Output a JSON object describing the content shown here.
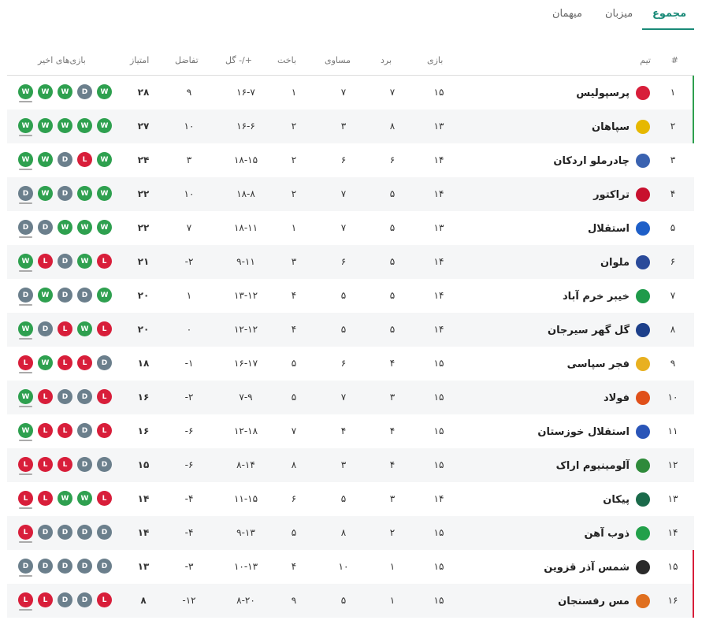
{
  "tabs": [
    {
      "label": "مجموع",
      "active": true
    },
    {
      "label": "میزبان",
      "active": false
    },
    {
      "label": "میهمان",
      "active": false
    }
  ],
  "headers": {
    "pos": "#",
    "team": "تیم",
    "played": "بازی",
    "won": "برد",
    "drawn": "مساوی",
    "lost": "باخت",
    "goals": "گل -/+",
    "diff": "تفاضل",
    "points": "امتیاز",
    "form": "بازی‌های اخیر"
  },
  "colors": {
    "accent": "#1a8a78",
    "win": "#2ea04f",
    "draw": "#6b7f8c",
    "loss": "#d81e3a",
    "top_zone": "#2ea04f",
    "bottom_zone": "#d81e3a"
  },
  "rows": [
    {
      "pos": "۱",
      "team": "پرسپولیس",
      "logo": "#d81e3a",
      "played": "۱۵",
      "won": "۷",
      "drawn": "۷",
      "lost": "۱",
      "goals": "۱۶-۷",
      "diff": "۹",
      "points": "۲۸",
      "form": [
        "W",
        "W",
        "W",
        "D",
        "W"
      ]
    },
    {
      "pos": "۲",
      "team": "سپاهان",
      "logo": "#e6b800",
      "played": "۱۳",
      "won": "۸",
      "drawn": "۳",
      "lost": "۲",
      "goals": "۱۶-۶",
      "diff": "۱۰",
      "points": "۲۷",
      "form": [
        "W",
        "W",
        "W",
        "W",
        "W"
      ]
    },
    {
      "pos": "۳",
      "team": "چادرملو اردکان",
      "logo": "#3a62b0",
      "played": "۱۴",
      "won": "۶",
      "drawn": "۶",
      "lost": "۲",
      "goals": "۱۸-۱۵",
      "diff": "۳",
      "points": "۲۴",
      "form": [
        "W",
        "W",
        "D",
        "L",
        "W"
      ]
    },
    {
      "pos": "۴",
      "team": "تراکتور",
      "logo": "#c8102e",
      "played": "۱۴",
      "won": "۵",
      "drawn": "۷",
      "lost": "۲",
      "goals": "۱۸-۸",
      "diff": "۱۰",
      "points": "۲۲",
      "form": [
        "D",
        "W",
        "D",
        "W",
        "W"
      ]
    },
    {
      "pos": "۵",
      "team": "استقلال",
      "logo": "#1e5fc8",
      "played": "۱۳",
      "won": "۵",
      "drawn": "۷",
      "lost": "۱",
      "goals": "۱۸-۱۱",
      "diff": "۷",
      "points": "۲۲",
      "form": [
        "D",
        "D",
        "W",
        "W",
        "W"
      ]
    },
    {
      "pos": "۶",
      "team": "ملوان",
      "logo": "#2a4a9a",
      "played": "۱۴",
      "won": "۵",
      "drawn": "۶",
      "lost": "۳",
      "goals": "۹-۱۱",
      "diff": "-۲",
      "points": "۲۱",
      "form": [
        "W",
        "L",
        "D",
        "W",
        "L"
      ]
    },
    {
      "pos": "۷",
      "team": "خیبر خرم آباد",
      "logo": "#1f9a4a",
      "played": "۱۴",
      "won": "۵",
      "drawn": "۵",
      "lost": "۴",
      "goals": "۱۳-۱۲",
      "diff": "۱",
      "points": "۲۰",
      "form": [
        "D",
        "W",
        "D",
        "D",
        "W"
      ]
    },
    {
      "pos": "۸",
      "team": "گل گهر سیرجان",
      "logo": "#1d3f8a",
      "played": "۱۴",
      "won": "۵",
      "drawn": "۵",
      "lost": "۴",
      "goals": "۱۲-۱۲",
      "diff": "۰",
      "points": "۲۰",
      "form": [
        "W",
        "D",
        "L",
        "W",
        "L"
      ]
    },
    {
      "pos": "۹",
      "team": "فجر سپاسی",
      "logo": "#e8b020",
      "played": "۱۵",
      "won": "۴",
      "drawn": "۶",
      "lost": "۵",
      "goals": "۱۶-۱۷",
      "diff": "-۱",
      "points": "۱۸",
      "form": [
        "L",
        "W",
        "L",
        "L",
        "D"
      ]
    },
    {
      "pos": "۱۰",
      "team": "فولاد",
      "logo": "#e0501a",
      "played": "۱۵",
      "won": "۳",
      "drawn": "۷",
      "lost": "۵",
      "goals": "۷-۹",
      "diff": "-۲",
      "points": "۱۶",
      "form": [
        "W",
        "L",
        "D",
        "D",
        "L"
      ]
    },
    {
      "pos": "۱۱",
      "team": "استقلال خوزستان",
      "logo": "#2a55b8",
      "played": "۱۵",
      "won": "۴",
      "drawn": "۴",
      "lost": "۷",
      "goals": "۱۲-۱۸",
      "diff": "-۶",
      "points": "۱۶",
      "form": [
        "W",
        "L",
        "L",
        "D",
        "L"
      ]
    },
    {
      "pos": "۱۲",
      "team": "آلومینیوم اراک",
      "logo": "#2e8a3a",
      "played": "۱۵",
      "won": "۴",
      "drawn": "۳",
      "lost": "۸",
      "goals": "۸-۱۴",
      "diff": "-۶",
      "points": "۱۵",
      "form": [
        "L",
        "L",
        "L",
        "D",
        "D"
      ]
    },
    {
      "pos": "۱۳",
      "team": "پیکان",
      "logo": "#1a6a4a",
      "played": "۱۴",
      "won": "۳",
      "drawn": "۵",
      "lost": "۶",
      "goals": "۱۱-۱۵",
      "diff": "-۴",
      "points": "۱۴",
      "form": [
        "L",
        "L",
        "W",
        "W",
        "L"
      ]
    },
    {
      "pos": "۱۴",
      "team": "ذوب آهن",
      "logo": "#22a04a",
      "played": "۱۵",
      "won": "۲",
      "drawn": "۸",
      "lost": "۵",
      "goals": "۹-۱۳",
      "diff": "-۴",
      "points": "۱۴",
      "form": [
        "L",
        "D",
        "D",
        "D",
        "D"
      ]
    },
    {
      "pos": "۱۵",
      "team": "شمس آذر قزوین",
      "logo": "#2a2a2a",
      "played": "۱۵",
      "won": "۱",
      "drawn": "۱۰",
      "lost": "۴",
      "goals": "۱۰-۱۳",
      "diff": "-۳",
      "points": "۱۳",
      "form": [
        "D",
        "D",
        "D",
        "D",
        "D"
      ]
    },
    {
      "pos": "۱۶",
      "team": "مس رفسنجان",
      "logo": "#e07020",
      "played": "۱۵",
      "won": "۱",
      "drawn": "۵",
      "lost": "۹",
      "goals": "۸-۲۰",
      "diff": "-۱۲",
      "points": "۸",
      "form": [
        "L",
        "L",
        "D",
        "D",
        "L"
      ]
    }
  ]
}
